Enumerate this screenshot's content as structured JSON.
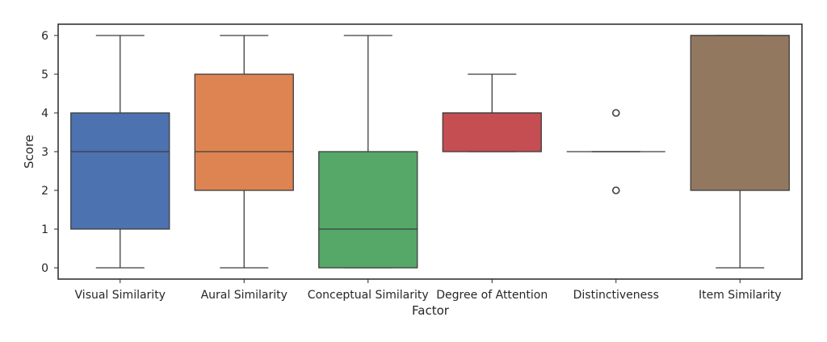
{
  "chart_data": {
    "type": "box",
    "title": "",
    "xlabel": "Factor",
    "ylabel": "Score",
    "ylim": [
      -0.3,
      6.3
    ],
    "yticks": [
      0,
      1,
      2,
      3,
      4,
      5,
      6
    ],
    "grid": false,
    "legend": "none",
    "categories": [
      "Visual Similarity",
      "Aural Similarity",
      "Conceptual Similarity",
      "Degree of Attention",
      "Distinctiveness",
      "Item Similarity"
    ],
    "boxes": [
      {
        "category": "Visual Similarity",
        "whisker_low": 0,
        "q1": 1,
        "median": 3,
        "q3": 4,
        "whisker_high": 6,
        "outliers": [],
        "color": "#4c72b0"
      },
      {
        "category": "Aural Similarity",
        "whisker_low": 0,
        "q1": 2,
        "median": 3,
        "q3": 5,
        "whisker_high": 6,
        "outliers": [],
        "color": "#dd8452"
      },
      {
        "category": "Conceptual Similarity",
        "whisker_low": 0,
        "q1": 0,
        "median": 1,
        "q3": 3,
        "whisker_high": 6,
        "outliers": [],
        "color": "#55a868"
      },
      {
        "category": "Degree of Attention",
        "whisker_low": 3,
        "q1": 3,
        "median": 4,
        "q3": 4,
        "whisker_high": 5,
        "outliers": [],
        "color": "#c44e52"
      },
      {
        "category": "Distinctiveness",
        "whisker_low": 3,
        "q1": 3,
        "median": 3,
        "q3": 3,
        "whisker_high": 3,
        "outliers": [
          2,
          4
        ],
        "color": "#8172b3"
      },
      {
        "category": "Item Similarity",
        "whisker_low": 0,
        "q1": 2,
        "median": 6,
        "q3": 6,
        "whisker_high": 6,
        "outliers": [],
        "color": "#937860"
      }
    ]
  }
}
